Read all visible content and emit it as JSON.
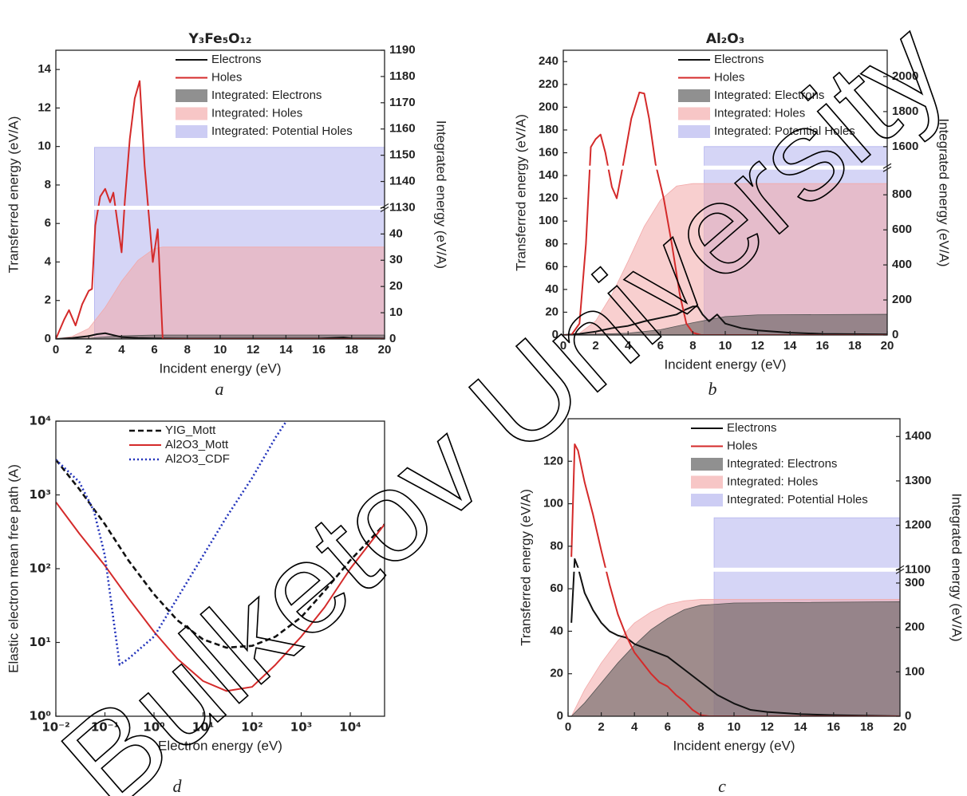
{
  "watermark": "Bulketov University",
  "chart_data": [
    {
      "type": "line",
      "title": "Y₃Fe₅O₁₂",
      "caption": "a",
      "xlabel": "Incident energy (eV)",
      "ylabel": "Transferred energy (eV/A)",
      "y2label": "Integrated energy (eV/A)",
      "xlim": [
        0,
        20
      ],
      "xticks": [
        0,
        2,
        4,
        6,
        8,
        10,
        12,
        14,
        16,
        18,
        20
      ],
      "ylim": [
        0,
        15
      ],
      "yticks": [
        0,
        2,
        4,
        6,
        8,
        10,
        12,
        14
      ],
      "y2lim": [
        [
          0,
          50
        ],
        [
          1130,
          1190
        ]
      ],
      "y2ticks": [
        0,
        10,
        20,
        30,
        40,
        1130,
        1140,
        1150,
        1160,
        1170,
        1180,
        1190
      ],
      "legend": "upper right",
      "series": [
        {
          "name": "Electrons",
          "style": "line",
          "color": "#111111",
          "x": [
            0,
            1,
            2,
            2.5,
            3,
            3.5,
            4,
            5,
            6,
            8,
            12,
            16,
            17.5,
            18,
            20
          ],
          "values": [
            0,
            0.05,
            0.15,
            0.25,
            0.3,
            0.2,
            0.1,
            0.05,
            0.03,
            0.02,
            0.02,
            0.02,
            0.08,
            0.03,
            0.02
          ]
        },
        {
          "name": "Holes",
          "style": "line",
          "color": "#d42a2a",
          "x": [
            0,
            0.5,
            0.8,
            1.2,
            1.6,
            2,
            2.2,
            2.4,
            2.7,
            3,
            3.3,
            3.5,
            4,
            4.2,
            4.5,
            4.8,
            5.1,
            5.4,
            5.7,
            5.9,
            6.2,
            6.5,
            20
          ],
          "values": [
            0,
            1.0,
            1.5,
            0.7,
            1.8,
            2.5,
            2.6,
            5.9,
            7.4,
            7.8,
            7.1,
            7.6,
            4.5,
            7.2,
            10.4,
            12.5,
            13.4,
            9,
            6.0,
            4.0,
            5.7,
            0,
            0
          ]
        },
        {
          "name": "Integrated: Electrons",
          "style": "area",
          "axis": "y2",
          "color": "#555555",
          "x": [
            0,
            2,
            3,
            4,
            6,
            20
          ],
          "values": [
            0,
            0.3,
            0.8,
            1.2,
            1.5,
            1.5
          ]
        },
        {
          "name": "Integrated: Holes",
          "style": "area",
          "axis": "y2",
          "color": "#f2a8a8",
          "x": [
            0,
            1,
            2,
            3,
            4,
            5,
            6,
            6.5,
            20
          ],
          "values": [
            0,
            1,
            4,
            12,
            22,
            30,
            34.5,
            35,
            35
          ]
        },
        {
          "name": "Integrated: Potential Holes",
          "style": "area",
          "axis": "y2",
          "color": "#b2b2ee",
          "x": [
            2.35,
            20
          ],
          "values": [
            1153,
            1153
          ]
        }
      ]
    },
    {
      "type": "line",
      "title": "Al₂O₃",
      "caption": "b",
      "xlabel": "Incident energy (eV)",
      "ylabel": "Transferred energy (eV/A)",
      "y2label": "Integrated energy (eV/A)",
      "xlim": [
        0,
        20
      ],
      "xticks": [
        0,
        2,
        4,
        6,
        8,
        10,
        12,
        14,
        16,
        18,
        20
      ],
      "ylim": [
        0,
        250
      ],
      "yticks": [
        0,
        20,
        40,
        60,
        80,
        100,
        120,
        140,
        160,
        180,
        200,
        220,
        240
      ],
      "y2lim": [
        [
          0,
          955
        ],
        [
          1480,
          2150
        ]
      ],
      "y2ticks": [
        0,
        200,
        400,
        600,
        800,
        1600,
        1800,
        2000
      ],
      "legend": "upper right",
      "series": [
        {
          "name": "Electrons",
          "style": "line",
          "color": "#111111",
          "x": [
            0,
            1,
            2,
            3,
            4,
            5,
            6,
            7,
            7.5,
            8,
            8.3,
            8.6,
            9,
            9.5,
            10,
            11,
            12,
            14,
            16,
            20
          ],
          "values": [
            0,
            1,
            3,
            6,
            8,
            12,
            15,
            18,
            22,
            25,
            25,
            18,
            12,
            18,
            10,
            6,
            4,
            2,
            1,
            0.5
          ]
        },
        {
          "name": "Holes",
          "style": "line",
          "color": "#d42a2a",
          "x": [
            0,
            0.5,
            1,
            1.4,
            1.7,
            2,
            2.3,
            2.6,
            3,
            3.3,
            3.7,
            4.2,
            4.7,
            5,
            5.3,
            5.7,
            6.2,
            6.7,
            7.2,
            7.6,
            8,
            8.5,
            20
          ],
          "values": [
            0,
            0,
            10,
            80,
            165,
            172,
            176,
            160,
            130,
            120,
            150,
            190,
            213,
            212,
            190,
            150,
            120,
            80,
            35,
            10,
            2,
            0,
            0
          ]
        },
        {
          "name": "Integrated: Electrons",
          "style": "area",
          "axis": "y2",
          "color": "#555555",
          "x": [
            0,
            4,
            6,
            8,
            10,
            12,
            20
          ],
          "values": [
            0,
            10,
            30,
            70,
            105,
            115,
            118
          ]
        },
        {
          "name": "Integrated: Holes",
          "style": "area",
          "axis": "y2",
          "color": "#f2a8a8",
          "x": [
            0,
            1,
            2,
            3,
            4,
            5,
            6,
            7,
            8,
            20
          ],
          "values": [
            0,
            10,
            80,
            230,
            420,
            620,
            770,
            850,
            864,
            864
          ]
        },
        {
          "name": "Integrated: Potential Holes",
          "style": "area",
          "axis": "y2",
          "color": "#b2b2ee",
          "x": [
            8.7,
            20
          ],
          "values": [
            1600,
            1600
          ]
        }
      ]
    },
    {
      "type": "line",
      "caption": "c",
      "xlabel": "Incident energy (eV)",
      "ylabel": "Transferred energy (eV/A)",
      "y2label": "Integrated energy (eV/A)",
      "xlim": [
        0,
        20
      ],
      "xticks": [
        0,
        2,
        4,
        6,
        8,
        10,
        12,
        14,
        16,
        18,
        20
      ],
      "ylim": [
        0,
        140
      ],
      "yticks": [
        0,
        20,
        40,
        60,
        80,
        100,
        120
      ],
      "y2lim": [
        [
          0,
          330
        ],
        [
          1100,
          1440
        ]
      ],
      "y2ticks": [
        0,
        100,
        200,
        300,
        1100,
        1200,
        1300,
        1400
      ],
      "legend": "upper right",
      "series": [
        {
          "name": "Electrons",
          "style": "line",
          "color": "#111111",
          "x": [
            0.2,
            0.4,
            0.6,
            1,
            1.5,
            2,
            2.5,
            3,
            3.5,
            4,
            5,
            6,
            7,
            8,
            9,
            10,
            11,
            12,
            14,
            16,
            20
          ],
          "values": [
            44,
            74,
            70,
            58,
            50,
            44,
            40,
            38,
            37,
            34,
            31,
            28,
            22,
            16,
            10,
            6,
            3,
            2,
            1,
            0.5,
            0
          ]
        },
        {
          "name": "Holes",
          "style": "line",
          "color": "#d42a2a",
          "x": [
            0.2,
            0.4,
            0.6,
            1,
            1.5,
            2,
            2.5,
            3,
            3.5,
            4,
            4.5,
            5,
            5.5,
            6,
            6.5,
            7,
            7.5,
            8,
            8.5,
            20
          ],
          "values": [
            75,
            128,
            125,
            110,
            95,
            78,
            62,
            48,
            38,
            30,
            25,
            20,
            16,
            14,
            10,
            7,
            3,
            0.5,
            0,
            0
          ]
        },
        {
          "name": "Integrated: Electrons",
          "style": "area",
          "axis": "y2",
          "color": "#555555",
          "x": [
            0.2,
            1,
            2,
            3,
            4,
            5,
            6,
            7,
            8,
            10,
            20
          ],
          "values": [
            0,
            30,
            75,
            120,
            160,
            195,
            220,
            240,
            250,
            255,
            258
          ]
        },
        {
          "name": "Integrated: Holes",
          "style": "area",
          "axis": "y2",
          "color": "#f2a8a8",
          "x": [
            0.2,
            1,
            2,
            3,
            4,
            5,
            6,
            7,
            8,
            20
          ],
          "values": [
            0,
            60,
            120,
            170,
            210,
            235,
            252,
            260,
            263,
            263
          ]
        },
        {
          "name": "Integrated: Potential Holes",
          "style": "area",
          "axis": "y2",
          "color": "#b2b2ee",
          "x": [
            8.8,
            20
          ],
          "values": [
            1217,
            1217
          ]
        }
      ]
    },
    {
      "type": "line",
      "caption": "d",
      "xlabel": "Electron energy (eV)",
      "ylabel": "Elastic electron mean free path (A)",
      "xscale": "log",
      "yscale": "log",
      "xlim": [
        0.01,
        50000
      ],
      "xticks": [
        {
          "value": 0.01,
          "label": "10⁻²"
        },
        {
          "value": 0.1,
          "label": "10⁻¹"
        },
        {
          "value": 1,
          "label": "10⁰"
        },
        {
          "value": 10,
          "label": "10¹"
        },
        {
          "value": 100,
          "label": "10²"
        },
        {
          "value": 1000,
          "label": "10³"
        },
        {
          "value": 10000,
          "label": "10⁴"
        }
      ],
      "ylim": [
        1,
        10000
      ],
      "yticks": [
        {
          "value": 1,
          "label": "10⁰"
        },
        {
          "value": 10,
          "label": "10¹"
        },
        {
          "value": 100,
          "label": "10²"
        },
        {
          "value": 1000,
          "label": "10³"
        },
        {
          "value": 10000,
          "label": "10⁴"
        }
      ],
      "legend": "upper center",
      "series": [
        {
          "name": "YIG_Mott",
          "style": "line",
          "dash": "dashed",
          "color": "#111111",
          "x": [
            0.01,
            0.03,
            0.1,
            0.3,
            1,
            3,
            10,
            30,
            100,
            300,
            1000,
            3000,
            10000,
            50000
          ],
          "values": [
            3000,
            1200,
            400,
            130,
            45,
            20,
            11,
            8.5,
            9,
            12,
            22,
            50,
            130,
            400
          ]
        },
        {
          "name": "Al2O3_Mott",
          "style": "line",
          "color": "#d42a2a",
          "x": [
            0.01,
            0.03,
            0.1,
            0.3,
            1,
            3,
            10,
            30,
            100,
            300,
            1000,
            3000,
            10000,
            50000
          ],
          "values": [
            800,
            300,
            110,
            40,
            14,
            6,
            3,
            2.2,
            2.5,
            5,
            12,
            30,
            100,
            400
          ]
        },
        {
          "name": "Al2O3_CDF",
          "style": "line",
          "dash": "dotted",
          "color": "#2233bb",
          "x": [
            0.01,
            0.03,
            0.06,
            0.1,
            0.15,
            0.2,
            0.3,
            1,
            3,
            10,
            30,
            100,
            300,
            500
          ],
          "values": [
            3000,
            1500,
            600,
            150,
            20,
            5,
            6,
            12,
            40,
            150,
            500,
            1700,
            6000,
            10000
          ]
        }
      ]
    }
  ]
}
